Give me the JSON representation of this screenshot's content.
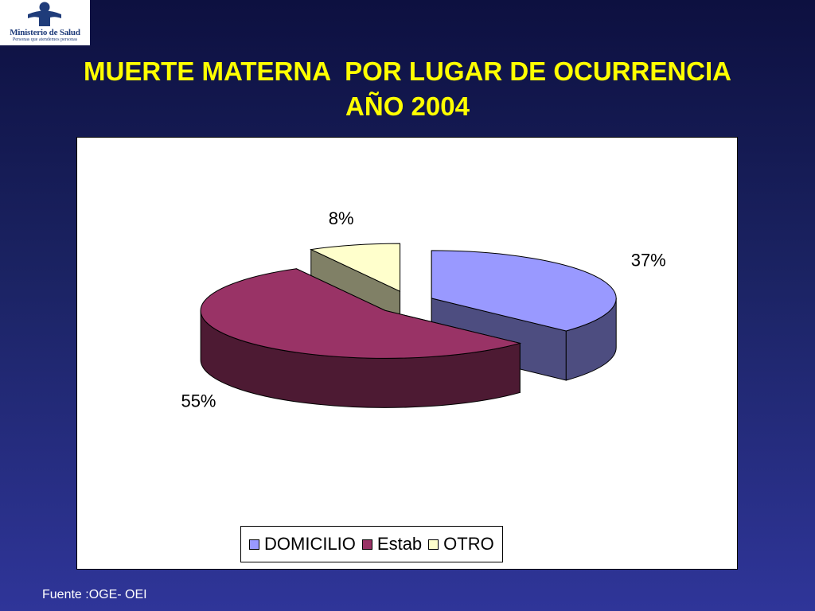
{
  "logo": {
    "name": "Ministerio de Salud",
    "slogan": "Personas que atendemos personas",
    "color": "#1f3c7a"
  },
  "title": {
    "line1": "MUERTE MATERNA  POR LUGAR DE OCURRENCIA",
    "line2": "AÑO 2004"
  },
  "chart_data": {
    "type": "pie",
    "style": "3d-exploded",
    "categories": [
      "DOMICILIO",
      "Estab",
      "OTRO"
    ],
    "values": [
      37,
      55,
      8
    ],
    "labels": [
      "37%",
      "55%",
      "8%"
    ],
    "colors": {
      "DOMICILIO": {
        "top": "#9999ff",
        "side": "#4d4d80"
      },
      "Estab": {
        "top": "#993366",
        "side": "#4d1a33"
      },
      "OTRO": {
        "top": "#ffffcc",
        "side": "#808066"
      }
    },
    "legend": {
      "position": "bottom",
      "entries": [
        "DOMICILIO",
        "Estab",
        "OTRO"
      ]
    }
  },
  "source": "Fuente :OGE- OEI"
}
